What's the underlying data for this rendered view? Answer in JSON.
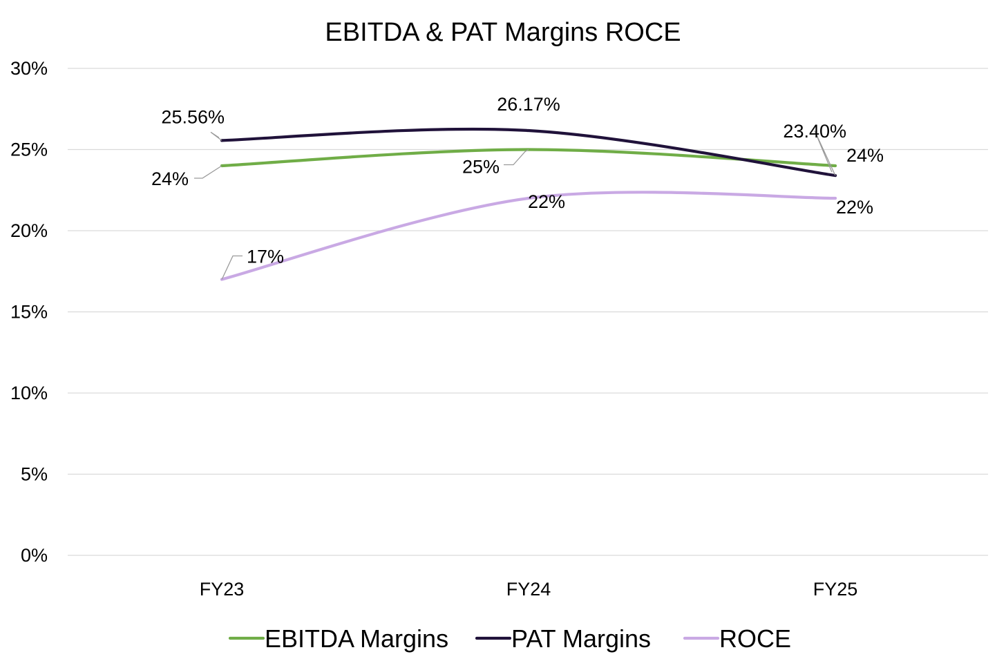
{
  "chart_data": {
    "type": "line",
    "title": "EBITDA & PAT Margins ROCE",
    "categories": [
      "FY23",
      "FY24",
      "FY25"
    ],
    "ylim": [
      0,
      30
    ],
    "yticks": [
      0,
      5,
      10,
      15,
      20,
      25,
      30
    ],
    "ytick_labels": [
      "0%",
      "5%",
      "10%",
      "15%",
      "20%",
      "25%",
      "30%"
    ],
    "grid": true,
    "smooth": true,
    "legend_position": "bottom",
    "series": [
      {
        "name": "EBITDA Margins",
        "color": "#70ad47",
        "values": [
          24,
          25,
          24
        ],
        "labels": [
          "24%",
          "25%",
          "24%"
        ]
      },
      {
        "name": "PAT Margins",
        "color": "#20123a",
        "values": [
          25.56,
          26.17,
          23.4
        ],
        "labels": [
          "25.56%",
          "26.17%",
          "23.40%"
        ]
      },
      {
        "name": "ROCE",
        "color": "#c9a9e4",
        "values": [
          17,
          22,
          22
        ],
        "labels": [
          "17%",
          "22%",
          "22%"
        ]
      }
    ]
  }
}
